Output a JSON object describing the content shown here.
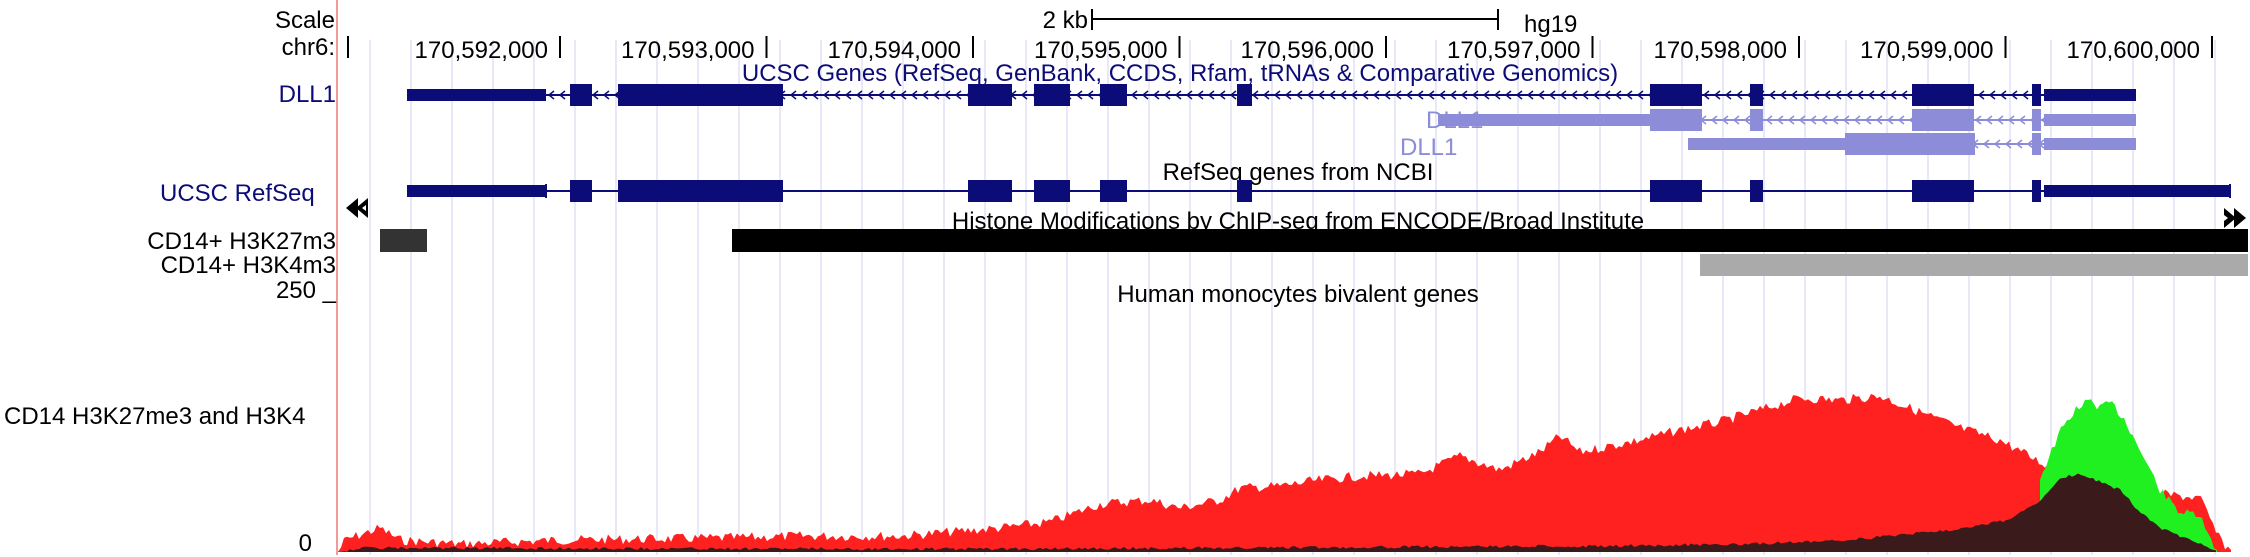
{
  "header": {
    "scale_label": "Scale",
    "chrom_label": "chr6:",
    "scale_bar_label": "2 kb",
    "assembly": "hg19"
  },
  "ruler": {
    "positions": [
      "170,592,000",
      "170,593,000",
      "170,594,000",
      "170,595,000",
      "170,596,000",
      "170,597,000",
      "170,598,000",
      "170,599,000",
      "170,600,000"
    ]
  },
  "tracks": {
    "ucsc_genes_title": "UCSC Genes (RefSeq, GenBank, CCDS, Rfam, tRNAs & Comparative Genomics)",
    "gene_label": "DLL1",
    "isoform1_label": "DLL1",
    "isoform2_label": "DLL1",
    "refseq_title": "RefSeq genes from NCBI",
    "refseq_label": "UCSC RefSeq",
    "histone_title": "Histone Modifications by ChIP-seq from ENCODE/Broad Institute",
    "h3k27m3_label": "CD14+ H3K27m3",
    "h3k4m3_label": "CD14+ H3K4m3",
    "bivalent_title": "Human monocytes bivalent genes",
    "signal_label": "CD14 H3K27me3 and H3K4",
    "y_max": "250 _",
    "y_min": "0"
  },
  "colors": {
    "gene_navy": "#0c0c78",
    "gene_light": "#8c8cd8",
    "gridline": "#d2d2f2",
    "h3k27_red": "#ff2020",
    "h3k4_green": "#20f020",
    "overlap_dark": "#3a1a1a",
    "peak_dark": "#333333",
    "peak_black": "#000000",
    "peak_grey": "#aaaaaa"
  }
}
